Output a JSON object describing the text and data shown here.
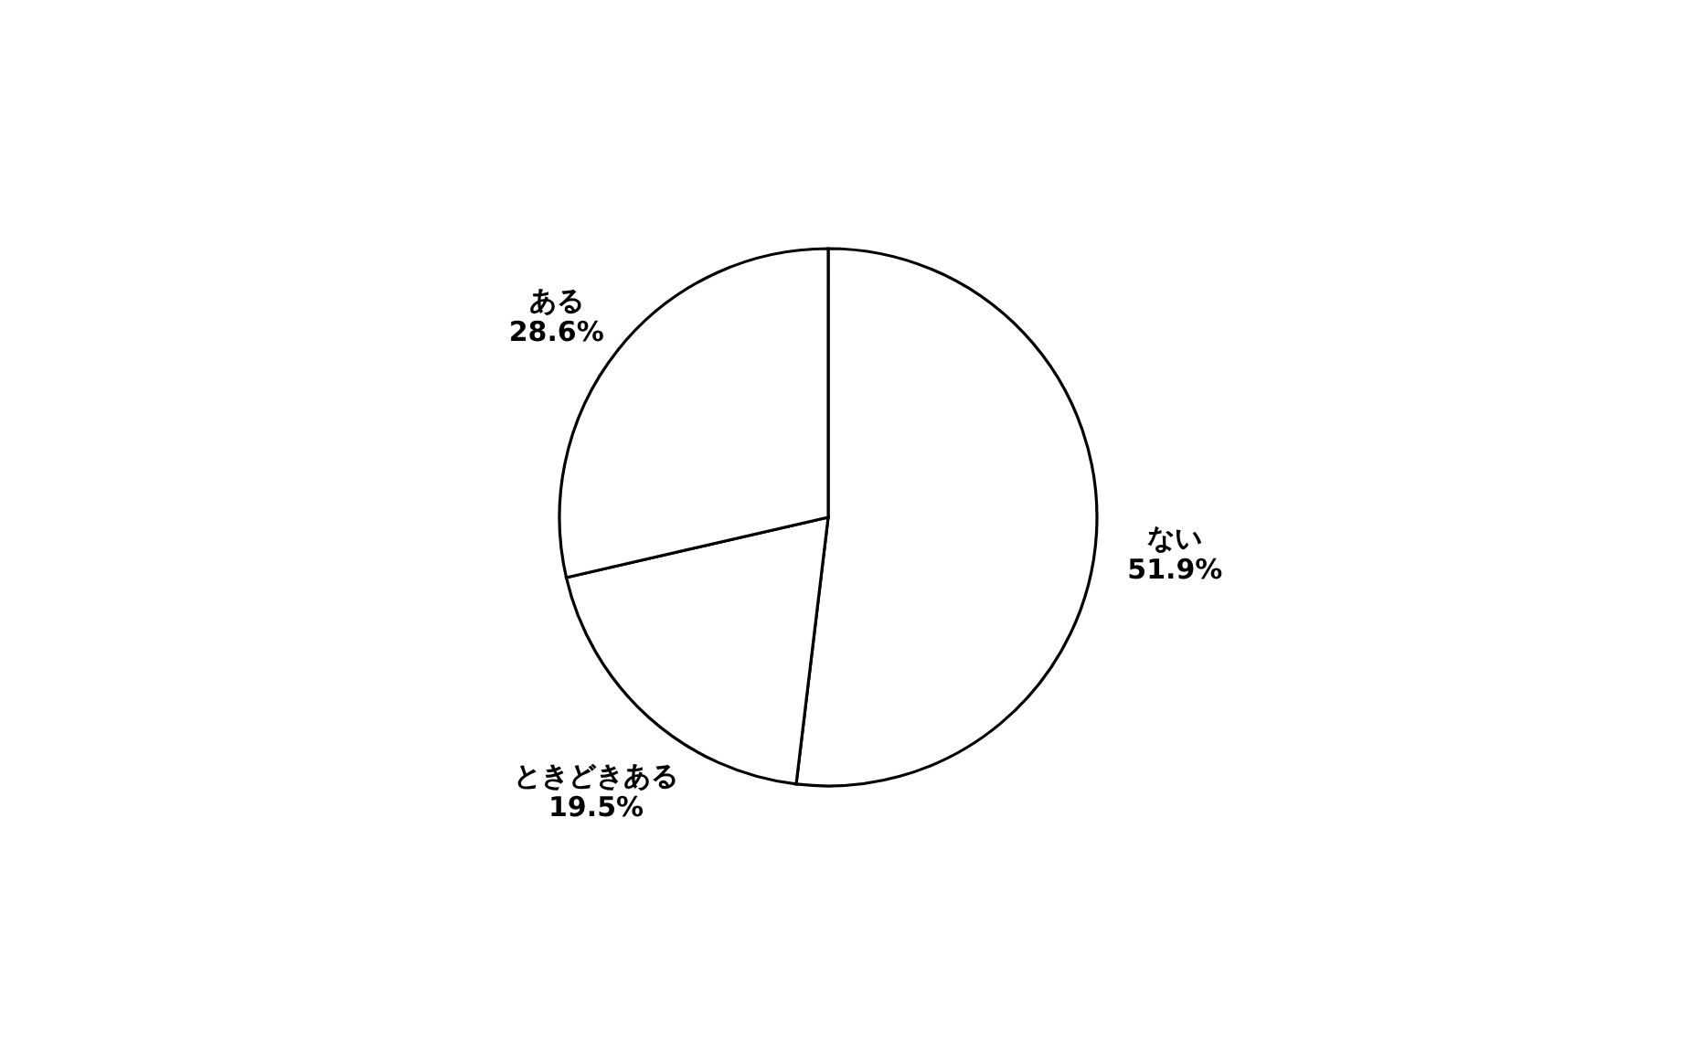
{
  "chart_data": {
    "type": "pie",
    "categories": [
      "ない",
      "ときどきある",
      "ある"
    ],
    "values": [
      51.9,
      19.5,
      28.6
    ],
    "colors": [
      "#ffffff",
      "#ffffff",
      "#ffffff"
    ],
    "value_labels": [
      "51.9%",
      "19.5%",
      "28.6%"
    ],
    "legend": false
  }
}
